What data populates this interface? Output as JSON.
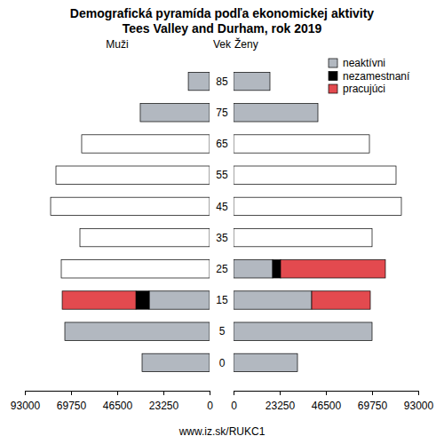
{
  "chart_data": [
    {
      "type": "bar",
      "orientation": "horizontal",
      "stacked": true,
      "title": "Demografická pyramída podľa ekonomickej aktivity",
      "subtitle": "Tees Valley and Durham, rok 2019",
      "xlabel": "Muži",
      "ylabel": "Vek",
      "caption": "www.iz.sk/RUKC1",
      "categories": [
        "0",
        "5",
        "15",
        "25",
        "35",
        "45",
        "55",
        "65",
        "75",
        "85"
      ],
      "series": [
        {
          "color": "#b2b8c0",
          "values": [
            33980,
            72880,
            30400,
            null,
            null,
            null,
            null,
            null,
            34900,
            10700
          ]
        },
        {
          "color": "#000000",
          "values": [
            null,
            null,
            6700,
            null,
            null,
            null,
            null,
            null,
            null,
            null
          ]
        },
        {
          "color": "#e34a4f",
          "values": [
            null,
            null,
            37100,
            null,
            null,
            null,
            null,
            null,
            null,
            null
          ]
        },
        {
          "color": "#ffffff",
          "values": [
            null,
            null,
            null,
            74670,
            65280,
            80030,
            77350,
            64400,
            null,
            null
          ]
        }
      ],
      "xlim": [
        93000,
        0
      ],
      "xticks": [
        93000,
        69750,
        46500,
        23250,
        0
      ]
    },
    {
      "type": "bar",
      "orientation": "horizontal",
      "stacked": true,
      "xlabel": "Ženy",
      "legend": "top-right",
      "series": [
        {
          "name": "neaktívni",
          "color": "#b2b8c0",
          "values": [
            32190,
            69750,
            39350,
            19670,
            null,
            null,
            null,
            null,
            42480,
            18330
          ]
        },
        {
          "name": "nezamestnaní",
          "color": "#000000",
          "values": [
            null,
            null,
            0,
            4020,
            null,
            null,
            null,
            null,
            null,
            null
          ]
        },
        {
          "name": "pracujúci",
          "color": "#e34a4f",
          "values": [
            null,
            null,
            29510,
            52760,
            null,
            null,
            null,
            null,
            null,
            null
          ]
        },
        {
          "color": "#ffffff",
          "values": [
            null,
            null,
            null,
            null,
            69750,
            84500,
            81820,
            68410,
            null,
            null
          ]
        }
      ],
      "xlim": [
        0,
        93000
      ],
      "xticks": [
        0,
        23250,
        46500,
        69750,
        93000
      ]
    }
  ]
}
